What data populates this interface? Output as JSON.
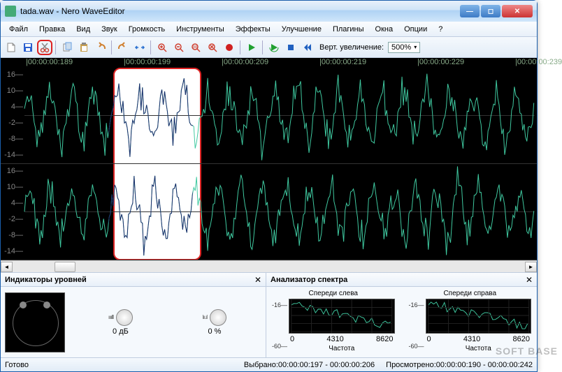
{
  "window": {
    "title": "tada.wav - Nero WaveEditor"
  },
  "menu": [
    "Файл",
    "Правка",
    "Вид",
    "Звук",
    "Громкость",
    "Инструменты",
    "Эффекты",
    "Улучшение",
    "Плагины",
    "Окна",
    "Опции",
    "?"
  ],
  "toolbar": {
    "icons": [
      "new",
      "save",
      "cut",
      "copy",
      "paste",
      "undo",
      "redo",
      "fit",
      "zoom-in",
      "zoom-out",
      "zoom-sel",
      "zoom-reset",
      "record",
      "play",
      "play-loop",
      "stop",
      "rewind"
    ],
    "zoom_label": "Верт. увеличение:",
    "zoom_value": "500%",
    "highlighted_icon": "cut",
    "colors": {
      "new": "#e8b030",
      "save": "#2a5fd0",
      "cut": "#d04030",
      "copy": "#6aa0e0",
      "paste": "#c8a050",
      "undo": "#d08030",
      "redo": "#d08030",
      "fit": "#2a70d0",
      "zoom-in": "#d04030",
      "zoom-out": "#d04030",
      "zoom-sel": "#d04030",
      "zoom-reset": "#d04030",
      "record": "#d02020",
      "play": "#20a030",
      "play-loop": "#20a030",
      "stop": "#2060c0",
      "rewind": "#2060c0"
    }
  },
  "timeline": {
    "ticks": [
      "|00:00:00:189",
      "|00:00:00:199",
      "|00:00:00:209",
      "|00:00:00:219",
      "|00:00:00:229",
      "|00:00:00:239"
    ]
  },
  "waveform": {
    "y_ticks": [
      16,
      10,
      4,
      -2,
      -8,
      -14
    ],
    "selection": {
      "left_pct": 16.5,
      "width_pct": 16.5
    },
    "background": "#000000",
    "wave_color": "#3fc9a0",
    "sel_wave_color": "#1a2a6a",
    "highlight_border": "#d22"
  },
  "panels": {
    "levels": {
      "title": "Индикаторы уровней",
      "knob1_label": "0 дБ",
      "knob2_label": "0 %"
    },
    "spectrum": {
      "title": "Анализатор спектра",
      "left_label": "Спереди слева",
      "right_label": "Спереди справа",
      "y_ticks": [
        "-16—",
        "-60—"
      ],
      "x_ticks": [
        "0",
        "4310",
        "8620"
      ],
      "x_axis_label": "Частота"
    }
  },
  "status": {
    "ready": "Готово",
    "selection": "Выбрано:00:00:00:197 - 00:00:00:206",
    "viewed": "Просмотрено:00:00:00:190 - 00:00:00:242"
  },
  "watermark": "SOFT BASE"
}
